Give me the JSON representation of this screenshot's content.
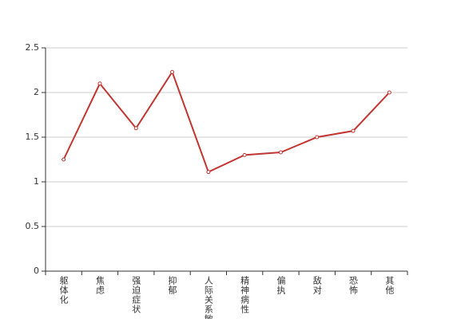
{
  "chart_data": {
    "type": "line",
    "categories": [
      "躯体化",
      "焦虑",
      "强迫症状",
      "抑郁",
      "人际关系敏感",
      "精神病性",
      "偏执",
      "敌对",
      "恐怖",
      "其他"
    ],
    "values": [
      1.25,
      2.1,
      1.6,
      2.23,
      1.11,
      1.3,
      1.33,
      1.5,
      1.57,
      2.0
    ],
    "color": "#c23531",
    "ylim": [
      0,
      2.5
    ],
    "yticks": [
      0,
      0.5,
      1,
      1.5,
      2,
      2.5
    ],
    "grid": true
  }
}
